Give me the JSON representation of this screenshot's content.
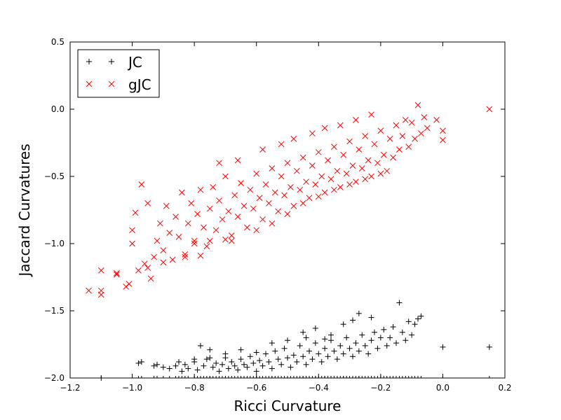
{
  "chart_data": {
    "type": "scatter",
    "xlabel": "Ricci Curvature",
    "ylabel": "Jaccard Curvatures",
    "xlim": [
      -1.2,
      0.2
    ],
    "ylim": [
      -2.0,
      0.5
    ],
    "xticks": [
      -1.2,
      -1.0,
      -0.8,
      -0.6,
      -0.4,
      -0.2,
      0.0,
      0.2
    ],
    "xtick_labels": [
      "−1.2",
      "−1.0",
      "−0.8",
      "−0.6",
      "−0.4",
      "−0.2",
      "0.0",
      "0.2"
    ],
    "yticks": [
      -2.0,
      -1.5,
      -1.0,
      -0.5,
      0.0,
      0.5
    ],
    "ytick_labels": [
      "−2.0",
      "−1.5",
      "−1.0",
      "−0.5",
      "0.0",
      "0.5"
    ],
    "grid": false,
    "legend_position": "top-left",
    "series": [
      {
        "name": "JC",
        "marker": "plus",
        "color": "#000000",
        "points": [
          [
            -1.1,
            -2.0
          ],
          [
            -0.98,
            -1.89
          ],
          [
            -0.97,
            -1.88
          ],
          [
            -0.93,
            -1.91
          ],
          [
            -0.92,
            -1.9
          ],
          [
            -0.9,
            -1.92
          ],
          [
            -0.88,
            -1.93
          ],
          [
            -0.86,
            -1.91
          ],
          [
            -0.84,
            -1.95
          ],
          [
            -0.83,
            -1.9
          ],
          [
            -0.82,
            -1.93
          ],
          [
            -0.8,
            -1.88
          ],
          [
            -0.79,
            -1.94
          ],
          [
            -0.78,
            -1.76
          ],
          [
            -0.77,
            -1.91
          ],
          [
            -0.76,
            -1.86
          ],
          [
            -0.75,
            -1.79
          ],
          [
            -0.74,
            -1.92
          ],
          [
            -0.73,
            -1.89
          ],
          [
            -0.72,
            -1.95
          ],
          [
            -0.71,
            -1.9
          ],
          [
            -0.7,
            -1.85
          ],
          [
            -0.69,
            -1.93
          ],
          [
            -0.68,
            -1.88
          ],
          [
            -0.67,
            -1.91
          ],
          [
            -0.66,
            -1.94
          ],
          [
            -0.65,
            -1.86
          ],
          [
            -0.64,
            -1.9
          ],
          [
            -0.63,
            -1.92
          ],
          [
            -0.62,
            -1.84
          ],
          [
            -0.61,
            -1.89
          ],
          [
            -0.6,
            -1.95
          ],
          [
            -0.59,
            -1.87
          ],
          [
            -0.58,
            -1.91
          ],
          [
            -0.57,
            -1.82
          ],
          [
            -0.56,
            -1.88
          ],
          [
            -0.55,
            -1.93
          ],
          [
            -0.54,
            -1.8
          ],
          [
            -0.53,
            -1.86
          ],
          [
            -0.52,
            -1.9
          ],
          [
            -0.51,
            -1.78
          ],
          [
            -0.5,
            -1.85
          ],
          [
            -0.49,
            -1.92
          ],
          [
            -0.48,
            -1.83
          ],
          [
            -0.47,
            -1.88
          ],
          [
            -0.46,
            -1.76
          ],
          [
            -0.45,
            -1.84
          ],
          [
            -0.44,
            -1.9
          ],
          [
            -0.43,
            -1.8
          ],
          [
            -0.42,
            -1.86
          ],
          [
            -0.41,
            -1.74
          ],
          [
            -0.4,
            -1.82
          ],
          [
            -0.39,
            -1.88
          ],
          [
            -0.38,
            -1.78
          ],
          [
            -0.37,
            -1.84
          ],
          [
            -0.36,
            -1.72
          ],
          [
            -0.35,
            -1.8
          ],
          [
            -0.34,
            -1.86
          ],
          [
            -0.33,
            -1.76
          ],
          [
            -0.32,
            -1.82
          ],
          [
            -0.31,
            -1.7
          ],
          [
            -0.3,
            -1.78
          ],
          [
            -0.29,
            -1.84
          ],
          [
            -0.28,
            -1.74
          ],
          [
            -0.27,
            -1.8
          ],
          [
            -0.26,
            -1.68
          ],
          [
            -0.25,
            -1.76
          ],
          [
            -0.24,
            -1.82
          ],
          [
            -0.23,
            -1.72
          ],
          [
            -0.22,
            -1.66
          ],
          [
            -0.21,
            -1.78
          ],
          [
            -0.2,
            -1.7
          ],
          [
            -0.19,
            -1.64
          ],
          [
            -0.18,
            -1.76
          ],
          [
            -0.17,
            -1.7
          ],
          [
            -0.16,
            -1.62
          ],
          [
            -0.15,
            -1.74
          ],
          [
            -0.14,
            -1.44
          ],
          [
            -0.13,
            -1.66
          ],
          [
            -0.12,
            -1.72
          ],
          [
            -0.11,
            -1.58
          ],
          [
            -0.1,
            -1.68
          ],
          [
            -0.09,
            -1.6
          ],
          [
            -0.08,
            -1.56
          ],
          [
            -0.07,
            -1.54
          ],
          [
            0.0,
            -1.77
          ],
          [
            0.15,
            -1.77
          ],
          [
            -0.29,
            -1.57
          ],
          [
            -0.32,
            -1.6
          ],
          [
            -0.41,
            -1.63
          ],
          [
            -0.38,
            -1.71
          ],
          [
            -0.45,
            -1.66
          ],
          [
            -0.5,
            -1.72
          ],
          [
            -0.55,
            -1.74
          ],
          [
            -0.6,
            -1.81
          ],
          [
            -0.65,
            -1.79
          ],
          [
            -0.7,
            -1.82
          ],
          [
            -0.75,
            -1.85
          ],
          [
            -0.8,
            -1.86
          ],
          [
            -0.85,
            -1.88
          ],
          [
            -0.27,
            -1.52
          ],
          [
            -0.23,
            -1.55
          ],
          [
            -0.36,
            -1.68
          ],
          [
            -0.44,
            -1.7
          ]
        ]
      },
      {
        "name": "gJC",
        "marker": "x",
        "color": "#ff0000",
        "points": [
          [
            -1.14,
            -1.35
          ],
          [
            -1.1,
            -1.35
          ],
          [
            -1.1,
            -1.38
          ],
          [
            -1.1,
            -1.2
          ],
          [
            -1.05,
            -1.22
          ],
          [
            -1.05,
            -1.23
          ],
          [
            -1.02,
            -1.32
          ],
          [
            -1.01,
            -1.3
          ],
          [
            -1.0,
            -1.0
          ],
          [
            -1.0,
            -0.9
          ],
          [
            -0.99,
            -0.77
          ],
          [
            -0.98,
            -1.2
          ],
          [
            -0.97,
            -0.56
          ],
          [
            -0.96,
            -1.15
          ],
          [
            -0.95,
            -0.7
          ],
          [
            -0.94,
            -1.26
          ],
          [
            -0.93,
            -1.1
          ],
          [
            -0.92,
            -0.98
          ],
          [
            -0.91,
            -0.85
          ],
          [
            -0.9,
            -1.05
          ],
          [
            -0.89,
            -0.72
          ],
          [
            -0.88,
            -0.92
          ],
          [
            -0.87,
            -1.12
          ],
          [
            -0.86,
            -0.8
          ],
          [
            -0.85,
            -0.95
          ],
          [
            -0.84,
            -0.62
          ],
          [
            -0.83,
            -1.08
          ],
          [
            -0.82,
            -0.85
          ],
          [
            -0.81,
            -0.7
          ],
          [
            -0.8,
            -0.98
          ],
          [
            -0.79,
            -0.78
          ],
          [
            -0.78,
            -0.6
          ],
          [
            -0.77,
            -0.88
          ],
          [
            -0.76,
            -1.02
          ],
          [
            -0.75,
            -0.74
          ],
          [
            -0.74,
            -0.58
          ],
          [
            -0.73,
            -0.9
          ],
          [
            -0.72,
            -0.68
          ],
          [
            -0.71,
            -0.82
          ],
          [
            -0.7,
            -0.5
          ],
          [
            -0.69,
            -0.76
          ],
          [
            -0.68,
            -0.94
          ],
          [
            -0.67,
            -0.64
          ],
          [
            -0.66,
            -0.8
          ],
          [
            -0.65,
            -0.55
          ],
          [
            -0.64,
            -0.72
          ],
          [
            -0.63,
            -0.88
          ],
          [
            -0.62,
            -0.6
          ],
          [
            -0.61,
            -0.74
          ],
          [
            -0.6,
            -0.48
          ],
          [
            -0.59,
            -0.66
          ],
          [
            -0.58,
            -0.82
          ],
          [
            -0.57,
            -0.56
          ],
          [
            -0.56,
            -0.7
          ],
          [
            -0.55,
            -0.44
          ],
          [
            -0.54,
            -0.62
          ],
          [
            -0.53,
            -0.76
          ],
          [
            -0.52,
            -0.5
          ],
          [
            -0.51,
            -0.64
          ],
          [
            -0.5,
            -0.4
          ],
          [
            -0.49,
            -0.58
          ],
          [
            -0.48,
            -0.72
          ],
          [
            -0.47,
            -0.46
          ],
          [
            -0.46,
            -0.6
          ],
          [
            -0.45,
            -0.36
          ],
          [
            -0.44,
            -0.54
          ],
          [
            -0.43,
            -0.66
          ],
          [
            -0.42,
            -0.42
          ],
          [
            -0.41,
            -0.56
          ],
          [
            -0.4,
            -0.32
          ],
          [
            -0.39,
            -0.5
          ],
          [
            -0.38,
            -0.62
          ],
          [
            -0.37,
            -0.38
          ],
          [
            -0.36,
            -0.52
          ],
          [
            -0.35,
            -0.28
          ],
          [
            -0.34,
            -0.46
          ],
          [
            -0.33,
            -0.58
          ],
          [
            -0.32,
            -0.34
          ],
          [
            -0.31,
            -0.48
          ],
          [
            -0.3,
            -0.24
          ],
          [
            -0.29,
            -0.42
          ],
          [
            -0.28,
            -0.54
          ],
          [
            -0.27,
            -0.3
          ],
          [
            -0.26,
            -0.44
          ],
          [
            -0.25,
            -0.2
          ],
          [
            -0.24,
            -0.38
          ],
          [
            -0.23,
            -0.5
          ],
          [
            -0.22,
            -0.26
          ],
          [
            -0.21,
            -0.4
          ],
          [
            -0.2,
            -0.16
          ],
          [
            -0.19,
            -0.34
          ],
          [
            -0.18,
            -0.46
          ],
          [
            -0.17,
            -0.22
          ],
          [
            -0.16,
            -0.36
          ],
          [
            -0.15,
            -0.12
          ],
          [
            -0.14,
            -0.3
          ],
          [
            -0.13,
            -0.2
          ],
          [
            -0.12,
            -0.08
          ],
          [
            -0.11,
            -0.28
          ],
          [
            -0.1,
            -0.1
          ],
          [
            -0.09,
            -0.22
          ],
          [
            -0.08,
            0.03
          ],
          [
            -0.07,
            -0.18
          ],
          [
            -0.06,
            -0.06
          ],
          [
            -0.05,
            -0.14
          ],
          [
            -0.02,
            -0.08
          ],
          [
            0.0,
            -0.16
          ],
          [
            0.0,
            -0.23
          ],
          [
            0.15,
            0.0
          ],
          [
            -0.8,
            -1.0
          ],
          [
            -0.75,
            -0.98
          ],
          [
            -0.7,
            -0.97
          ],
          [
            -0.68,
            -0.98
          ],
          [
            -0.78,
            -1.09
          ],
          [
            -0.83,
            -1.1
          ],
          [
            -0.9,
            -1.14
          ],
          [
            -0.95,
            -1.18
          ],
          [
            -0.6,
            -0.9
          ],
          [
            -0.55,
            -0.85
          ],
          [
            -0.5,
            -0.78
          ],
          [
            -0.45,
            -0.7
          ],
          [
            -0.4,
            -0.65
          ],
          [
            -0.35,
            -0.6
          ],
          [
            -0.3,
            -0.56
          ],
          [
            -0.25,
            -0.52
          ],
          [
            -0.2,
            -0.48
          ],
          [
            -0.72,
            -0.4
          ],
          [
            -0.66,
            -0.38
          ],
          [
            -0.58,
            -0.3
          ],
          [
            -0.52,
            -0.26
          ],
          [
            -0.48,
            -0.22
          ],
          [
            -0.42,
            -0.18
          ],
          [
            -0.38,
            -0.14
          ],
          [
            -0.33,
            -0.12
          ],
          [
            -0.28,
            -0.08
          ],
          [
            -0.23,
            -0.04
          ]
        ]
      }
    ]
  }
}
